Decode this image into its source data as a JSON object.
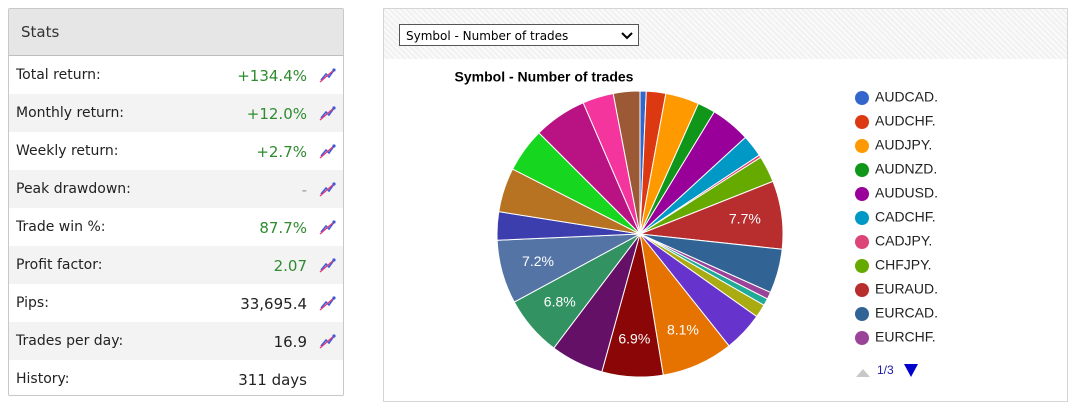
{
  "stats": {
    "title": "Stats",
    "rows": [
      {
        "label": "Total return:",
        "value": "+134.4%",
        "color": "#2e8b2e"
      },
      {
        "label": "Monthly return:",
        "value": "+12.0%",
        "color": "#2e8b2e"
      },
      {
        "label": "Weekly return:",
        "value": "+2.7%",
        "color": "#2e8b2e"
      },
      {
        "label": "Peak drawdown:",
        "value": "-",
        "color": "#999999"
      },
      {
        "label": "Trade win %:",
        "value": "87.7%",
        "color": "#2e8b2e"
      },
      {
        "label": "Profit factor:",
        "value": "2.07",
        "color": "#2e8b2e"
      },
      {
        "label": "Pips:",
        "value": "33,695.4",
        "color": "#222222"
      },
      {
        "label": "Trades per day:",
        "value": "16.9",
        "color": "#222222"
      },
      {
        "label": "History:",
        "value": "311 days",
        "color": "#222222"
      }
    ]
  },
  "dropdown": "Symbol - Number of trades",
  "chart_data": {
    "type": "pie",
    "title": "Symbol - Number of trades",
    "categories": [
      "AUDCAD.",
      "AUDCHF.",
      "AUDJPY.",
      "AUDNZD.",
      "AUDUSD.",
      "CADCHF.",
      "CADJPY.",
      "CHFJPY.",
      "EURAUD.",
      "EURCAD.",
      "EURCHF.",
      null,
      null,
      null,
      null,
      null,
      null,
      null,
      null,
      null,
      null,
      null,
      null,
      null,
      null
    ],
    "values": [
      0.7,
      2.2,
      3.8,
      2,
      4.5,
      2.5,
      0.3,
      3,
      7.7,
      5,
      0.8,
      0.8,
      1.5,
      4.5,
      8.1,
      6.9,
      6,
      6.8,
      7.2,
      3.2,
      5,
      5,
      6,
      3.5,
      3
    ],
    "value_labels": [
      null,
      null,
      null,
      null,
      null,
      null,
      null,
      null,
      "7.7%",
      null,
      null,
      null,
      null,
      null,
      "8.1%",
      "6.9%",
      null,
      "6.8%",
      "7.2%",
      null,
      null,
      null,
      null,
      null,
      null
    ],
    "colors": [
      "#3366cc",
      "#dc3912",
      "#ff9900",
      "#109618",
      "#990099",
      "#0099c6",
      "#dd4477",
      "#66aa00",
      "#b82e2e",
      "#316395",
      "#994499",
      "#22aa99",
      "#aaaa11",
      "#6633cc",
      "#e67300",
      "#8b0707",
      "#651067",
      "#329262",
      "#5574a6",
      "#3b3eac",
      "#b77322",
      "#16d620",
      "#b91383",
      "#f4359e",
      "#9c5935"
    ],
    "legend_page": "1/3"
  }
}
